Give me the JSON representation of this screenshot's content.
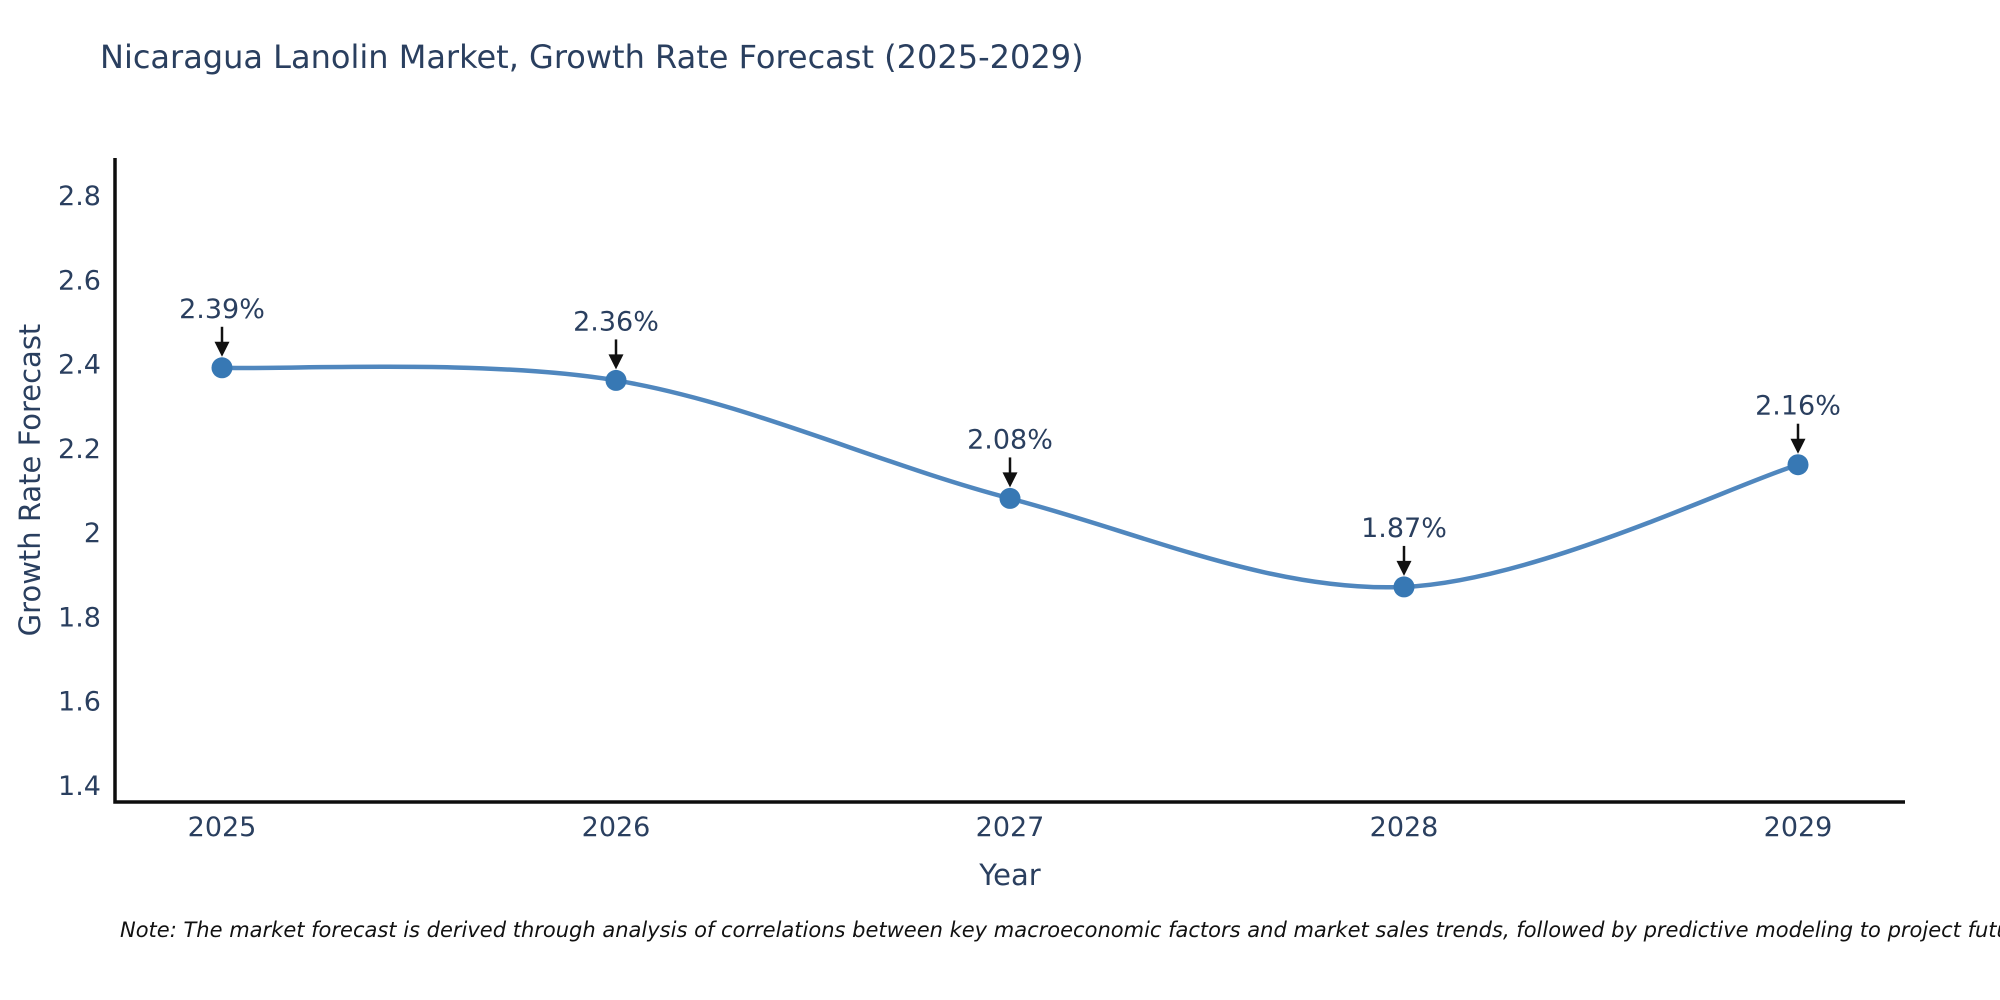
{
  "chart_data": {
    "type": "line",
    "title": "Nicaragua Lanolin Market, Growth Rate Forecast (2025-2029)",
    "xlabel": "Year",
    "ylabel": "Growth Rate Forecast",
    "x": [
      2025,
      2026,
      2027,
      2028,
      2029
    ],
    "y": [
      2.39,
      2.36,
      2.08,
      1.87,
      2.16
    ],
    "point_labels": [
      "2.39%",
      "2.36%",
      "2.08%",
      "1.87%",
      "2.16%"
    ],
    "x_tick_labels": [
      "2025",
      "2026",
      "2027",
      "2028",
      "2029"
    ],
    "y_tick_labels": [
      "1.4",
      "1.6",
      "1.8",
      "2",
      "2.2",
      "2.4",
      "2.6",
      "2.8"
    ],
    "y_tick_values": [
      1.4,
      1.6,
      1.8,
      2.0,
      2.2,
      2.4,
      2.6,
      2.8
    ],
    "ylim": [
      1.4,
      2.93
    ],
    "line_shape": "spline",
    "grid": false,
    "legend": "none",
    "colors": {
      "line": "#5087be",
      "marker": "#3778b4",
      "arrow": "#111111",
      "text": "#2a3f5f",
      "axis": "#0d0d0d",
      "background": "#ffffff"
    },
    "note": "Note: The market forecast is derived through analysis of correlations between key macroeconomic factors and market sales trends, followed by predictive modeling to project future sales"
  }
}
